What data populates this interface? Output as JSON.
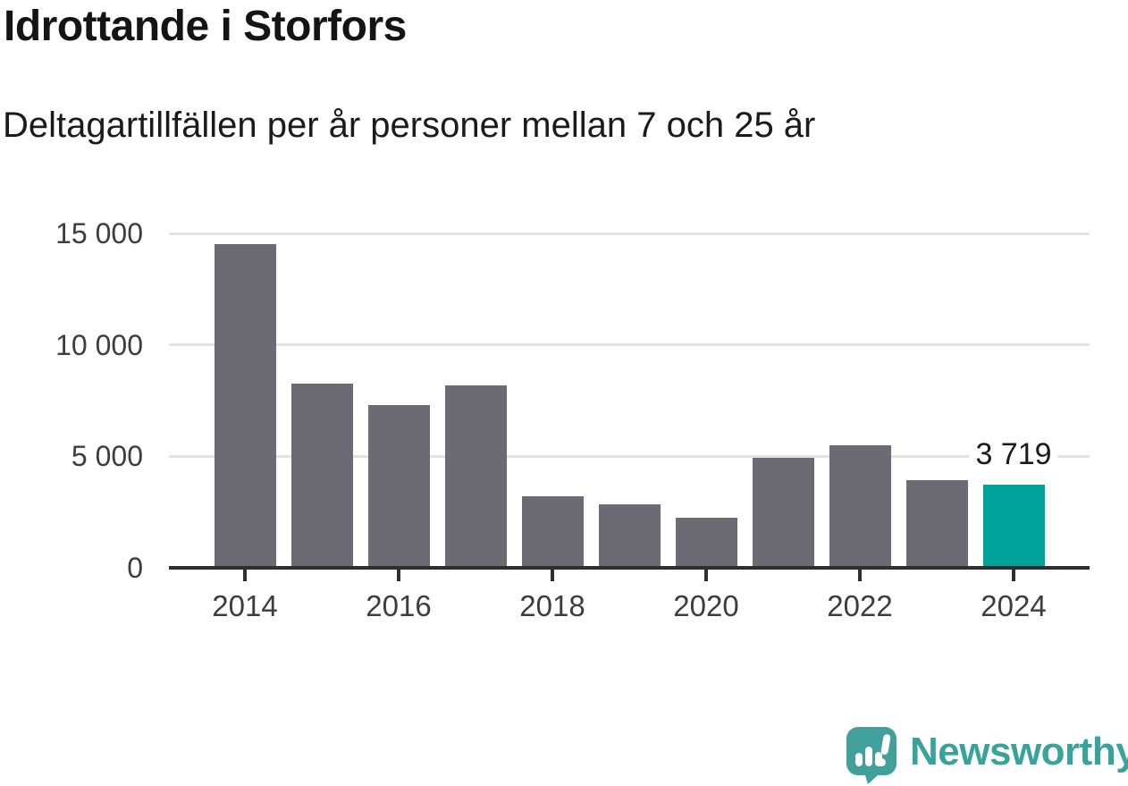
{
  "title": "Idrottande i Storfors",
  "subtitle": "Deltagartillfällen per år personer mellan 7 och 25 år",
  "footer": {
    "brand": "Newsworthy"
  },
  "colors": {
    "bar": "#6c6b74",
    "highlight": "#00a399",
    "axis": "#2f2f2f",
    "grid": "#e3e3e3",
    "tick_label": "#3d3d3d",
    "value_label": "#1a1a1a",
    "logo_bubble": "#41a09a",
    "logo_text": "#38a39a"
  },
  "chart_data": {
    "type": "bar",
    "title": "Idrottande i Storfors",
    "subtitle": "Deltagartillfällen per år personer mellan 7 och 25 år",
    "categories": [
      2014,
      2015,
      2016,
      2017,
      2018,
      2019,
      2020,
      2021,
      2022,
      2023,
      2024
    ],
    "values": [
      14500,
      8250,
      7300,
      8200,
      3200,
      2850,
      2250,
      4950,
      5500,
      3950,
      3719
    ],
    "highlight_index": 10,
    "highlight_label": "3 719",
    "ylim": [
      0,
      15000
    ],
    "y_ticks": [
      {
        "value": 0,
        "label": "0"
      },
      {
        "value": 5000,
        "label": "5 000"
      },
      {
        "value": 10000,
        "label": "10 000"
      },
      {
        "value": 15000,
        "label": "15 000"
      }
    ],
    "x_tick_labels": [
      "2014",
      "2016",
      "2018",
      "2020",
      "2022",
      "2024"
    ],
    "grid": true,
    "legend": "none",
    "xlabel": "",
    "ylabel": ""
  }
}
